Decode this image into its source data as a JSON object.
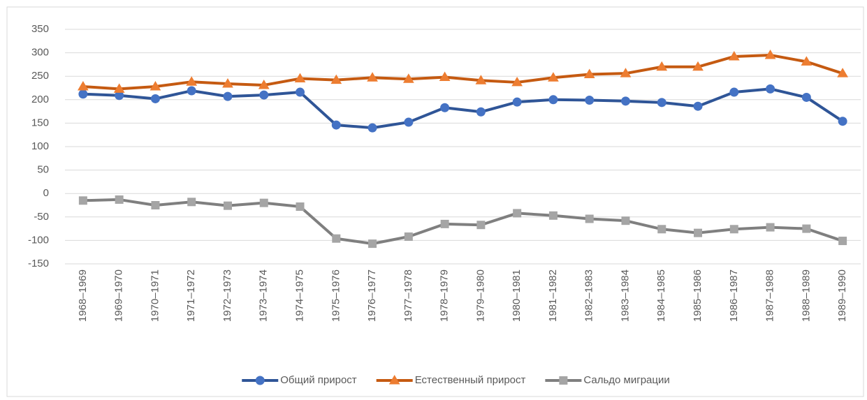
{
  "chart_data": {
    "type": "line",
    "categories": [
      "1968–1969",
      "1969–1970",
      "1970–1971",
      "1971–1972",
      "1972–1973",
      "1973–1974",
      "1974–1975",
      "1975–1976",
      "1976–1977",
      "1977–1978",
      "1978–1979",
      "1979–1980",
      "1980–1981",
      "1981–1982",
      "1982–1983",
      "1983–1984",
      "1984–1985",
      "1985–1986",
      "1986–1987",
      "1987–1988",
      "1988–1989",
      "1989–1990"
    ],
    "series": [
      {
        "name": "Общий прирост",
        "color": "#2f5597",
        "marker": "circle",
        "marker_color": "#4472c4",
        "values": [
          212,
          209,
          202,
          219,
          207,
          210,
          216,
          146,
          140,
          152,
          183,
          174,
          195,
          200,
          199,
          197,
          194,
          186,
          216,
          223,
          205,
          154
        ]
      },
      {
        "name": "Естественный прирост",
        "color": "#c55a11",
        "marker": "triangle",
        "marker_color": "#ed7d31",
        "values": [
          228,
          223,
          228,
          238,
          234,
          231,
          245,
          242,
          247,
          244,
          248,
          241,
          237,
          247,
          254,
          256,
          270,
          270,
          292,
          295,
          281,
          256
        ]
      },
      {
        "name": "Сальдо миграции",
        "color": "#7f7f7f",
        "marker": "square",
        "marker_color": "#a5a5a5",
        "values": [
          -15,
          -13,
          -25,
          -18,
          -26,
          -20,
          -28,
          -96,
          -107,
          -92,
          -65,
          -67,
          -42,
          -47,
          -54,
          -58,
          -76,
          -84,
          -76,
          -72,
          -75,
          -101
        ]
      }
    ],
    "ylim": [
      -150,
      350
    ],
    "yticks": [
      -150,
      -100,
      -50,
      0,
      50,
      100,
      150,
      200,
      250,
      300,
      350
    ],
    "grid": true,
    "legend": "bottom"
  }
}
